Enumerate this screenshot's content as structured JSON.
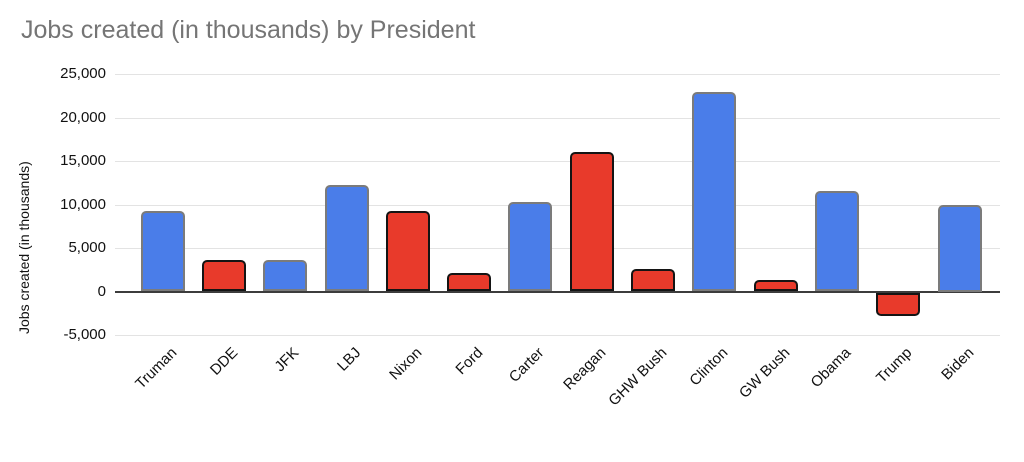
{
  "title": "Jobs created (in thousands) by President",
  "chart_data": {
    "type": "bar",
    "title": "Jobs created (in thousands) by President",
    "xlabel": "",
    "ylabel": "Jobs created (in thousands)",
    "categories": [
      "Truman",
      "DDE",
      "JFK",
      "LBJ",
      "Nixon",
      "Ford",
      "Carter",
      "Reagan",
      "GHW Bush",
      "Clinton",
      "GW Bush",
      "Obama",
      "Trump",
      "Biden"
    ],
    "values": [
      9300,
      3600,
      3600,
      12200,
      9200,
      2100,
      10300,
      16000,
      2600,
      22900,
      1300,
      11500,
      -2700,
      10000
    ],
    "parties": [
      "D",
      "R",
      "D",
      "D",
      "R",
      "R",
      "D",
      "R",
      "R",
      "D",
      "R",
      "D",
      "R",
      "D"
    ],
    "party_colors": {
      "D": "#4a7de9",
      "R": "#e83a2b"
    },
    "ylim": [
      -5000,
      25000
    ],
    "ytick_values": [
      25000,
      20000,
      15000,
      10000,
      5000,
      0,
      -5000
    ],
    "ytick_labels": [
      "25,000",
      "20,000",
      "15,000",
      "10,000",
      "5,000",
      "0",
      "-5,000"
    ],
    "grid": true,
    "legend": "none"
  }
}
